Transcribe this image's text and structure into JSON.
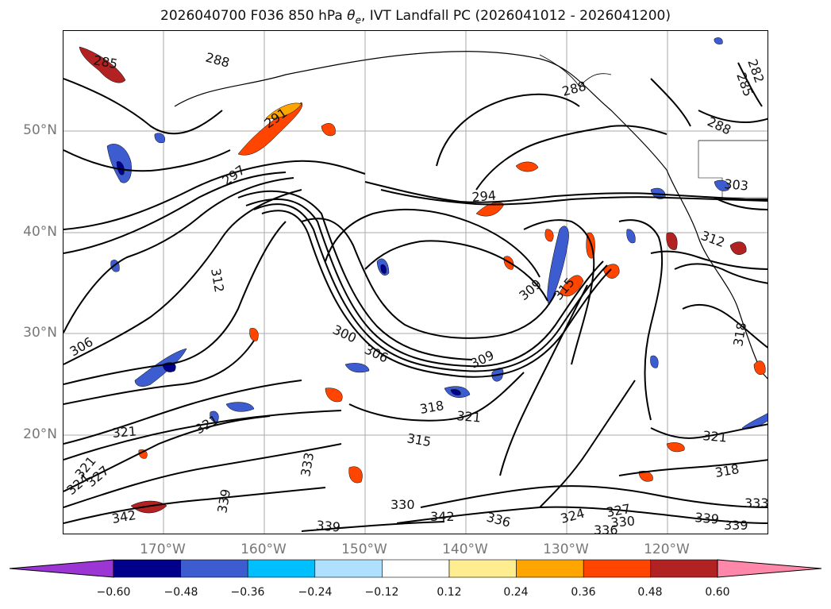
{
  "title": "2026040700 F036 850 hPa θe, IVT Landfall PC (2026041012 - 2026041200)",
  "lat_labels": [
    "50°N",
    "40°N",
    "30°N",
    "20°N"
  ],
  "lon_labels": [
    "170°W",
    "160°W",
    "150°W",
    "140°W",
    "130°W",
    "120°W"
  ],
  "colorbar": {
    "tick_labels": [
      "−0.60",
      "−0.48",
      "−0.36",
      "−0.24",
      "−0.12",
      "0.12",
      "0.24",
      "0.36",
      "0.48",
      "0.60"
    ],
    "colors": [
      "#9b35d3",
      "#00008b",
      "#3c5ccf",
      "#00bfff",
      "#b0e0ff",
      "#ffffff",
      "#ffee90",
      "#ffa500",
      "#ff4500",
      "#b22222",
      "#ff88aa"
    ]
  },
  "contour_labels": [
    {
      "text": "285"
    },
    {
      "text": "288"
    },
    {
      "text": "291"
    },
    {
      "text": "297"
    },
    {
      "text": "294"
    },
    {
      "text": "288"
    },
    {
      "text": "288"
    },
    {
      "text": "285"
    },
    {
      "text": "282"
    },
    {
      "text": "303"
    },
    {
      "text": "312"
    },
    {
      "text": "312"
    },
    {
      "text": "309"
    },
    {
      "text": "315"
    },
    {
      "text": "306"
    },
    {
      "text": "300"
    },
    {
      "text": "306"
    },
    {
      "text": "309"
    },
    {
      "text": "318"
    },
    {
      "text": "318"
    },
    {
      "text": "321"
    },
    {
      "text": "321"
    },
    {
      "text": "315"
    },
    {
      "text": "321"
    },
    {
      "text": "321"
    },
    {
      "text": "333"
    },
    {
      "text": "339"
    },
    {
      "text": "342"
    },
    {
      "text": "330"
    },
    {
      "text": "342"
    },
    {
      "text": "336"
    },
    {
      "text": "324"
    },
    {
      "text": "327"
    },
    {
      "text": "330"
    },
    {
      "text": "336"
    },
    {
      "text": "339"
    },
    {
      "text": "339"
    },
    {
      "text": "333"
    },
    {
      "text": "339"
    },
    {
      "text": "318"
    },
    {
      "text": "321"
    },
    {
      "text": "324"
    },
    {
      "text": "327"
    }
  ]
}
